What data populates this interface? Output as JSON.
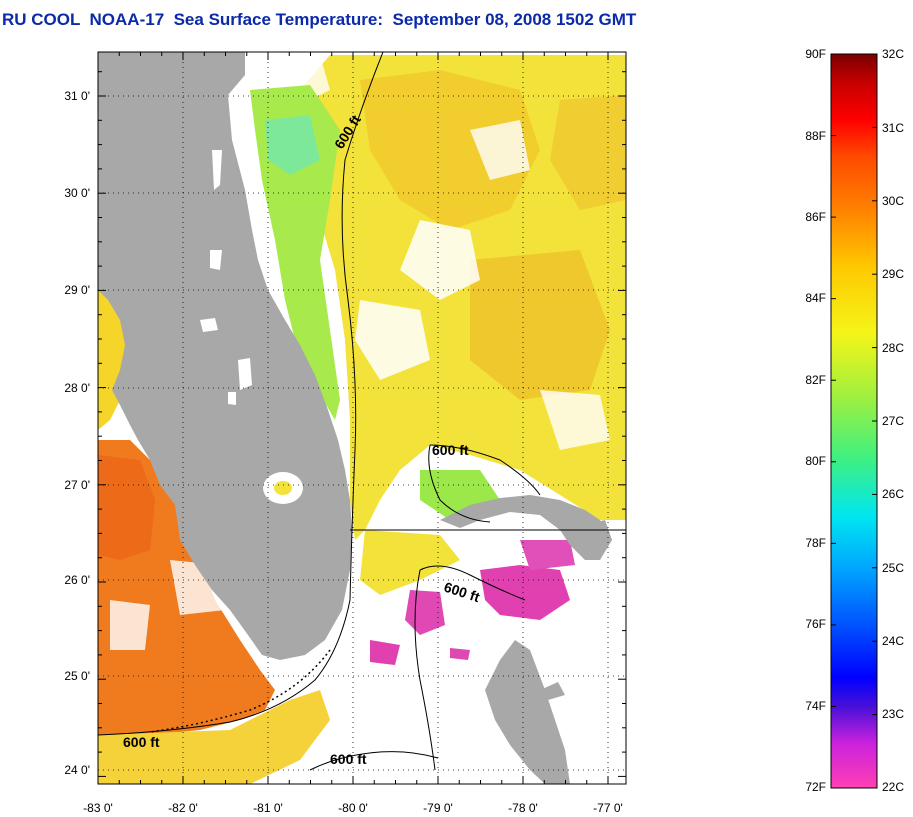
{
  "title": "RU COOL  NOAA-17  Sea Surface Temperature:  September 08, 2008 1502 GMT",
  "map": {
    "lon_range": [
      -83,
      -76.85
    ],
    "lat_range": [
      23.85,
      31.45
    ],
    "lon_ticks": [
      "-83 0'",
      "-82 0'",
      "-81 0'",
      "-80 0'",
      "-79 0'",
      "-78 0'",
      "-77 0'"
    ],
    "lat_ticks": [
      "31 0'",
      "30 0'",
      "29 0'",
      "28 0'",
      "27 0'",
      "26 0'",
      "25 0'",
      "24 0'"
    ],
    "contour_labels": [
      "600 ft",
      "600 ft",
      "600 ft",
      "600 ft",
      "600 ft"
    ],
    "colors": {
      "land": "#a8a8a8",
      "cloud": "#ffffff",
      "warm_gulf": "#f07a1e",
      "atlantic": "#f2e31c",
      "shelf_green": "#a6ec3a",
      "cold_pink": "#e040b0"
    }
  },
  "colorbar": {
    "f_labels": [
      "90F",
      "88F",
      "86F",
      "84F",
      "82F",
      "80F",
      "78F",
      "76F",
      "74F",
      "72F"
    ],
    "c_labels": [
      "32C",
      "31C",
      "30C",
      "29C",
      "28C",
      "27C",
      "26C",
      "25C",
      "24C",
      "23C",
      "22C"
    ],
    "f_range": [
      72,
      90
    ],
    "c_range": [
      22,
      32
    ]
  }
}
